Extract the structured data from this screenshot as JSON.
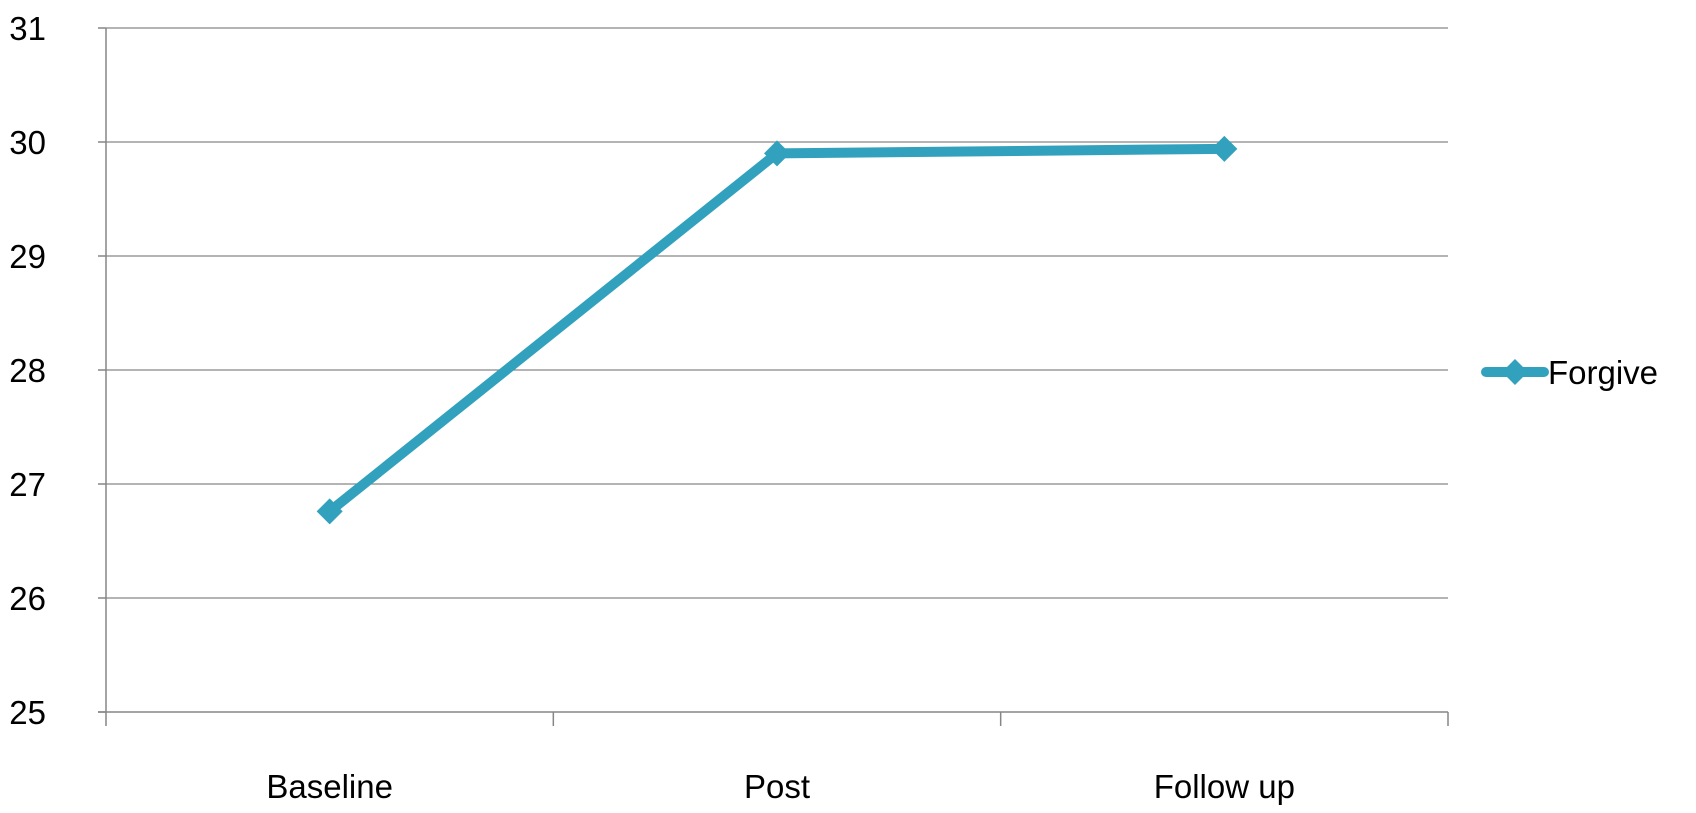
{
  "chart_data": {
    "type": "line",
    "title": "",
    "xlabel": "",
    "ylabel": "",
    "categories": [
      "Baseline",
      "Post",
      "Follow up"
    ],
    "series": [
      {
        "name": "Forgive",
        "values": [
          26.76,
          29.9,
          29.94
        ],
        "color": "#31a1bd",
        "marker": "diamond"
      }
    ],
    "ylim": [
      25,
      31
    ],
    "yticks": [
      "25",
      "26",
      "27",
      "28",
      "29",
      "30",
      "31"
    ],
    "grid": true,
    "legend_position": "right"
  }
}
